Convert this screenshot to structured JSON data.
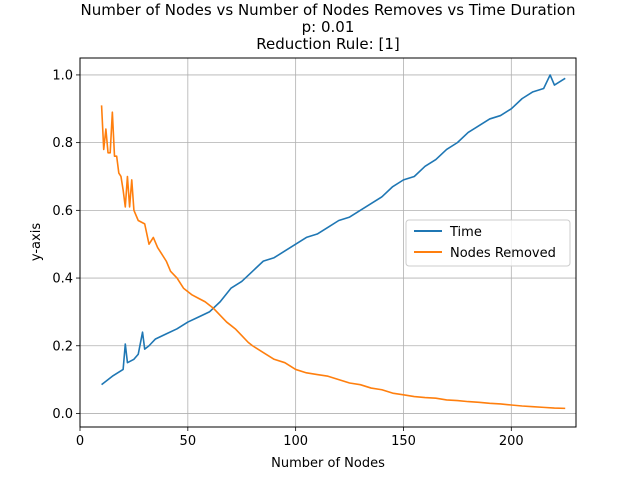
{
  "chart_data": {
    "type": "line",
    "title": "Number of Nodes vs Number of Nodes Removes vs Time Duration",
    "subtitle_lines": [
      "p: 0.01",
      "Reduction Rule: [1]"
    ],
    "xlabel": "Number of Nodes",
    "ylabel": "y-axis",
    "xlim": [
      0,
      230
    ],
    "ylim": [
      -0.04,
      1.05
    ],
    "xticks": [
      0,
      50,
      100,
      150,
      200
    ],
    "yticks": [
      0.0,
      0.2,
      0.4,
      0.6,
      0.8,
      1.0
    ],
    "xtick_labels": [
      "0",
      "50",
      "100",
      "150",
      "200"
    ],
    "ytick_labels": [
      "0.0",
      "0.2",
      "0.4",
      "0.6",
      "0.8",
      "1.0"
    ],
    "grid": true,
    "legend_position": "center-right",
    "series": [
      {
        "name": "Time",
        "color": "#1f77b4",
        "x": [
          10,
          15,
          20,
          21,
          22,
          25,
          27,
          29,
          30,
          32,
          35,
          40,
          45,
          50,
          55,
          60,
          65,
          70,
          75,
          80,
          85,
          90,
          95,
          100,
          105,
          110,
          115,
          120,
          125,
          130,
          135,
          140,
          145,
          150,
          155,
          160,
          165,
          170,
          175,
          180,
          185,
          190,
          195,
          200,
          205,
          210,
          215,
          218,
          220,
          225
        ],
        "y": [
          0.085,
          0.11,
          0.13,
          0.205,
          0.15,
          0.16,
          0.175,
          0.24,
          0.19,
          0.2,
          0.22,
          0.235,
          0.25,
          0.27,
          0.285,
          0.3,
          0.33,
          0.37,
          0.39,
          0.42,
          0.45,
          0.46,
          0.48,
          0.5,
          0.52,
          0.53,
          0.55,
          0.57,
          0.58,
          0.6,
          0.62,
          0.64,
          0.67,
          0.69,
          0.7,
          0.73,
          0.75,
          0.78,
          0.8,
          0.83,
          0.85,
          0.87,
          0.88,
          0.9,
          0.93,
          0.95,
          0.96,
          1.0,
          0.97,
          0.99
        ]
      },
      {
        "name": "Nodes Removed",
        "color": "#ff7f0e",
        "x": [
          10,
          11,
          12,
          13,
          14,
          15,
          16,
          17,
          18,
          19,
          20,
          21,
          22,
          23,
          24,
          25,
          27,
          30,
          32,
          34,
          36,
          38,
          40,
          42,
          45,
          48,
          50,
          52,
          55,
          58,
          60,
          62,
          65,
          68,
          70,
          72,
          75,
          78,
          80,
          85,
          90,
          95,
          100,
          105,
          110,
          115,
          120,
          125,
          130,
          135,
          140,
          145,
          150,
          155,
          160,
          165,
          170,
          175,
          180,
          185,
          190,
          195,
          200,
          205,
          210,
          215,
          220,
          225
        ],
        "y": [
          0.91,
          0.78,
          0.84,
          0.77,
          0.77,
          0.89,
          0.76,
          0.76,
          0.71,
          0.7,
          0.66,
          0.61,
          0.7,
          0.61,
          0.69,
          0.6,
          0.57,
          0.56,
          0.5,
          0.52,
          0.49,
          0.47,
          0.45,
          0.42,
          0.4,
          0.37,
          0.36,
          0.35,
          0.34,
          0.33,
          0.32,
          0.31,
          0.29,
          0.27,
          0.26,
          0.25,
          0.23,
          0.21,
          0.2,
          0.18,
          0.16,
          0.15,
          0.13,
          0.12,
          0.115,
          0.11,
          0.1,
          0.09,
          0.085,
          0.075,
          0.07,
          0.06,
          0.055,
          0.05,
          0.047,
          0.045,
          0.04,
          0.038,
          0.035,
          0.033,
          0.03,
          0.028,
          0.025,
          0.022,
          0.02,
          0.018,
          0.016,
          0.015
        ]
      }
    ]
  }
}
